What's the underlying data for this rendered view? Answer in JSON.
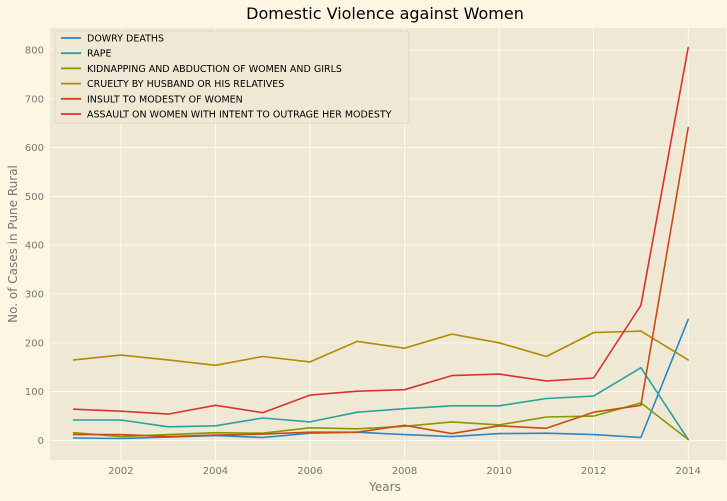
{
  "chart_data": {
    "type": "line",
    "title": "Domestic Violence against Women",
    "xlabel": "Years",
    "ylabel": "No. of Cases in Pune Rural",
    "x": [
      2001,
      2002,
      2003,
      2004,
      2005,
      2006,
      2007,
      2008,
      2009,
      2010,
      2011,
      2012,
      2013,
      2014
    ],
    "xlim": [
      2000.5,
      2014.8
    ],
    "ylim": [
      -40,
      845
    ],
    "xticks": [
      2002,
      2004,
      2006,
      2008,
      2010,
      2012,
      2014
    ],
    "yticks": [
      0,
      100,
      200,
      300,
      400,
      500,
      600,
      700,
      800
    ],
    "grid": true,
    "legend_position": "top-left",
    "series": [
      {
        "name": "DOWRY DEATHS",
        "color": "#2a87c8",
        "values": [
          5,
          4,
          7,
          10,
          6,
          15,
          17,
          12,
          8,
          14,
          15,
          12,
          6,
          248
        ]
      },
      {
        "name": "RAPE",
        "color": "#29a39a",
        "values": [
          42,
          42,
          28,
          30,
          46,
          38,
          58,
          65,
          71,
          71,
          86,
          91,
          149,
          2
        ]
      },
      {
        "name": "KIDNAPPING AND ABDUCTION OF WOMEN AND GIRLS",
        "color": "#859900",
        "values": [
          16,
          8,
          12,
          16,
          15,
          26,
          24,
          29,
          38,
          32,
          48,
          50,
          77,
          2
        ]
      },
      {
        "name": "CRUELTY BY HUSBAND OR HIS RELATIVES",
        "color": "#b58900",
        "values": [
          165,
          175,
          165,
          154,
          172,
          161,
          203,
          189,
          218,
          200,
          172,
          221,
          224,
          165
        ]
      },
      {
        "name": "INSULT TO MODESTY OF WOMEN",
        "color": "#cb4b16",
        "values": [
          12,
          12,
          8,
          11,
          13,
          17,
          17,
          31,
          14,
          30,
          25,
          58,
          72,
          641
        ]
      },
      {
        "name": "ASSAULT ON WOMEN WITH INTENT TO OUTRAGE HER MODESTY",
        "color": "#dc322f",
        "values": [
          64,
          60,
          54,
          72,
          57,
          93,
          101,
          104,
          133,
          136,
          122,
          128,
          277,
          805
        ]
      }
    ]
  }
}
